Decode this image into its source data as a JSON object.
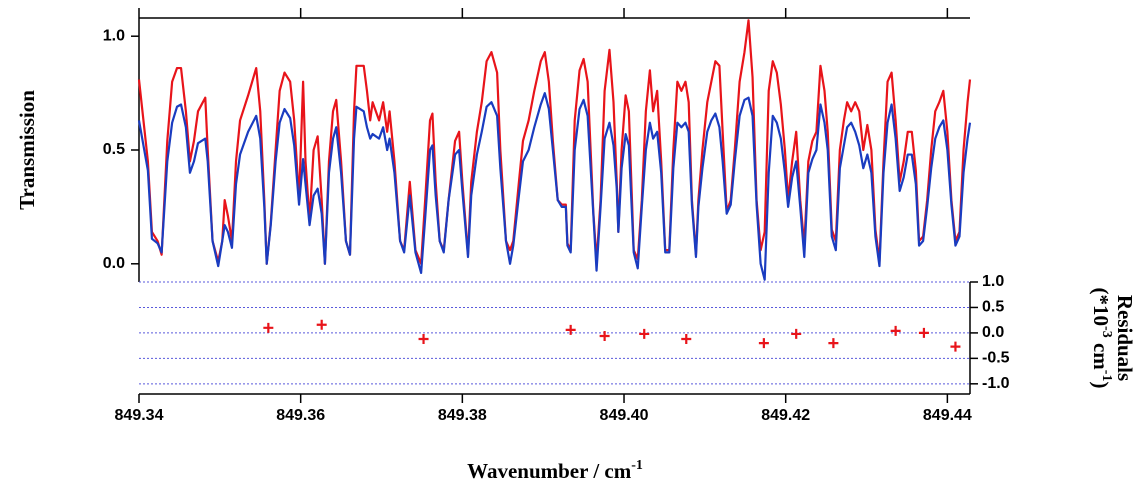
{
  "chart_data": [
    {
      "type": "line",
      "y_label": "Transmission",
      "x_label": "Wavenumber / cm",
      "x_label_sup": "-1",
      "xlim": [
        849.34,
        849.4428
      ],
      "xticks": [
        849.34,
        849.36,
        849.38,
        {
          "value": 849.4,
          "label": "849.40"
        },
        849.42,
        849.44
      ],
      "ylim": [
        -0.08,
        1.08
      ],
      "yticks": [
        {
          "value": 0,
          "label": "0.0"
        },
        {
          "value": 0.5,
          "label": "0.5"
        },
        {
          "value": 1,
          "label": "1.0"
        }
      ],
      "x": [
        849.34,
        849.3411,
        849.3416,
        849.3423,
        849.3428,
        849.3435,
        849.3441,
        849.3447,
        849.3452,
        849.3458,
        849.3463,
        849.3468,
        849.3473,
        849.3482,
        849.3485,
        849.3491,
        849.3498,
        849.3503,
        849.3506,
        849.351,
        849.3515,
        849.352,
        849.3525,
        849.3535,
        849.3545,
        849.355,
        849.3555,
        849.3558,
        849.3563,
        849.3569,
        849.3574,
        849.358,
        849.3587,
        849.3592,
        849.3598,
        849.3603,
        849.3606,
        849.3611,
        849.3616,
        849.3621,
        849.3626,
        849.363,
        849.3635,
        849.364,
        849.3644,
        849.365,
        849.3656,
        849.3661,
        849.3666,
        849.3669,
        849.3678,
        849.3682,
        849.3686,
        849.3689,
        849.3697,
        849.3702,
        849.3707,
        849.371,
        849.3716,
        849.3723,
        849.3728,
        849.3735,
        849.3742,
        849.3749,
        849.3754,
        849.376,
        849.3763,
        849.3767,
        849.3772,
        849.3777,
        849.3783,
        849.3791,
        849.3796,
        849.38,
        849.3807,
        849.3811,
        849.3818,
        849.3824,
        849.383,
        849.3836,
        849.3843,
        849.3847,
        849.3854,
        849.3859,
        849.3863,
        849.387,
        849.3875,
        849.3882,
        849.3889,
        849.3897,
        849.3902,
        849.3907,
        849.3912,
        849.3918,
        849.3923,
        849.3928,
        849.393,
        849.3934,
        849.3939,
        849.3945,
        849.395,
        849.3955,
        849.3962,
        849.3966,
        849.3971,
        849.3976,
        849.3982,
        849.3987,
        849.3991,
        849.3993,
        849.3997,
        849.4002,
        849.4006,
        849.4012,
        849.4017,
        849.4022,
        849.4027,
        849.4032,
        849.4036,
        849.4041,
        849.4046,
        849.4051,
        849.4056,
        849.4061,
        849.4066,
        849.4071,
        849.4076,
        849.408,
        849.4084,
        849.4089,
        849.4092,
        849.4097,
        849.4103,
        849.4108,
        849.4113,
        849.4118,
        849.4122,
        849.4127,
        849.4132,
        849.4137,
        849.4143,
        849.4149,
        849.4154,
        849.4159,
        849.4164,
        849.4169,
        849.4174,
        849.4179,
        849.4184,
        849.4189,
        849.4194,
        849.4199,
        849.4203,
        849.4208,
        849.4213,
        849.4218,
        849.4223,
        849.4228,
        849.4233,
        849.4238,
        849.4243,
        849.4248,
        849.4252,
        849.4257,
        849.4262,
        849.4267,
        849.4272,
        849.4276,
        849.4281,
        849.4286,
        849.4291,
        849.4296,
        849.4301,
        849.4306,
        849.4311,
        849.4316,
        849.4321,
        849.4326,
        849.4331,
        849.4336,
        849.4341,
        849.4346,
        849.4351,
        849.4356,
        849.4361,
        849.4365,
        849.437,
        849.4375,
        849.438,
        849.4385,
        849.439,
        849.4395,
        849.44,
        849.4405,
        849.441,
        849.4415,
        849.442,
        849.4425,
        849.4428
      ],
      "series": [
        {
          "color": "#e8141a",
          "values": [
            0.81,
            0.45,
            0.14,
            0.1,
            0.04,
            0.54,
            0.8,
            0.86,
            0.86,
            0.67,
            0.45,
            0.54,
            0.67,
            0.73,
            0.5,
            0.1,
            0.01,
            0.1,
            0.28,
            0.21,
            0.1,
            0.45,
            0.63,
            0.74,
            0.86,
            0.67,
            0.28,
            0,
            0.18,
            0.5,
            0.76,
            0.84,
            0.8,
            0.63,
            0.28,
            0.8,
            0.45,
            0.19,
            0.5,
            0.56,
            0.28,
            0,
            0.45,
            0.67,
            0.72,
            0.45,
            0.1,
            0.04,
            0.67,
            0.87,
            0.87,
            0.76,
            0.63,
            0.71,
            0.63,
            0.71,
            0.58,
            0.67,
            0.45,
            0.1,
            0.06,
            0.36,
            0.06,
            0,
            0.28,
            0.63,
            0.66,
            0.36,
            0.1,
            0.06,
            0.28,
            0.54,
            0.58,
            0.36,
            0.04,
            0.36,
            0.58,
            0.71,
            0.89,
            0.93,
            0.84,
            0.5,
            0.1,
            0.06,
            0.1,
            0.36,
            0.54,
            0.63,
            0.76,
            0.89,
            0.93,
            0.8,
            0.54,
            0.28,
            0.26,
            0.26,
            0.09,
            0.06,
            0.63,
            0.85,
            0.9,
            0.8,
            0.23,
            0.01,
            0.28,
            0.76,
            0.94,
            0.71,
            0.36,
            0.14,
            0.5,
            0.74,
            0.67,
            0.06,
            0.02,
            0.28,
            0.67,
            0.85,
            0.67,
            0.76,
            0.45,
            0.06,
            0.06,
            0.5,
            0.8,
            0.76,
            0.8,
            0.71,
            0.28,
            0.04,
            0.28,
            0.5,
            0.71,
            0.8,
            0.89,
            0.87,
            0.58,
            0.23,
            0.28,
            0.5,
            0.8,
            0.93,
            1.07,
            0.82,
            0.28,
            0.06,
            0.14,
            0.76,
            0.89,
            0.84,
            0.7,
            0.5,
            0.28,
            0.45,
            0.58,
            0.28,
            0.08,
            0.45,
            0.54,
            0.58,
            0.87,
            0.76,
            0.58,
            0.15,
            0.1,
            0.5,
            0.63,
            0.71,
            0.67,
            0.71,
            0.67,
            0.5,
            0.61,
            0.5,
            0.15,
            0.01,
            0.45,
            0.8,
            0.84,
            0.63,
            0.36,
            0.45,
            0.58,
            0.58,
            0.41,
            0.1,
            0.12,
            0.28,
            0.5,
            0.67,
            0.71,
            0.76,
            0.58,
            0.28,
            0.1,
            0.14,
            0.5,
            0.71,
            0.81
          ]
        },
        {
          "color": "#1a3cc0",
          "values": [
            0.63,
            0.41,
            0.11,
            0.09,
            0.05,
            0.45,
            0.62,
            0.69,
            0.7,
            0.6,
            0.4,
            0.45,
            0.53,
            0.55,
            0.45,
            0.1,
            -0.01,
            0.1,
            0.17,
            0.14,
            0.07,
            0.35,
            0.48,
            0.58,
            0.65,
            0.55,
            0.25,
            0,
            0.17,
            0.45,
            0.62,
            0.68,
            0.64,
            0.52,
            0.26,
            0.46,
            0.35,
            0.17,
            0.3,
            0.33,
            0.22,
            0,
            0.4,
            0.55,
            0.6,
            0.4,
            0.1,
            0.04,
            0.55,
            0.69,
            0.67,
            0.6,
            0.55,
            0.57,
            0.55,
            0.6,
            0.5,
            0.55,
            0.4,
            0.1,
            0.05,
            0.3,
            0.05,
            -0.04,
            0.2,
            0.5,
            0.52,
            0.3,
            0.1,
            0.05,
            0.28,
            0.48,
            0.5,
            0.32,
            0.03,
            0.3,
            0.48,
            0.58,
            0.69,
            0.71,
            0.65,
            0.42,
            0.1,
            0,
            0.08,
            0.3,
            0.45,
            0.5,
            0.6,
            0.7,
            0.75,
            0.68,
            0.5,
            0.28,
            0.25,
            0.25,
            0.08,
            0.05,
            0.5,
            0.68,
            0.72,
            0.65,
            0.22,
            -0.03,
            0.25,
            0.55,
            0.62,
            0.52,
            0.33,
            0.14,
            0.42,
            0.57,
            0.52,
            0.05,
            -0.02,
            0.25,
            0.5,
            0.62,
            0.55,
            0.58,
            0.4,
            0.05,
            0.05,
            0.42,
            0.62,
            0.6,
            0.62,
            0.58,
            0.26,
            0.03,
            0.25,
            0.42,
            0.58,
            0.63,
            0.66,
            0.6,
            0.45,
            0.22,
            0.26,
            0.45,
            0.65,
            0.72,
            0.73,
            0.65,
            0.26,
            0,
            -0.07,
            0.4,
            0.65,
            0.62,
            0.55,
            0.4,
            0.25,
            0.38,
            0.45,
            0.25,
            0.03,
            0.4,
            0.46,
            0.5,
            0.7,
            0.62,
            0.5,
            0.12,
            0.06,
            0.42,
            0.52,
            0.6,
            0.62,
            0.58,
            0.52,
            0.42,
            0.48,
            0.4,
            0.12,
            -0.01,
            0.4,
            0.62,
            0.7,
            0.55,
            0.32,
            0.38,
            0.48,
            0.48,
            0.35,
            0.08,
            0.1,
            0.25,
            0.42,
            0.55,
            0.6,
            0.63,
            0.5,
            0.26,
            0.08,
            0.12,
            0.4,
            0.55,
            0.62
          ]
        }
      ]
    },
    {
      "type": "scatter",
      "y_label": "Residuals",
      "y_unit": [
        "(*10",
        "-3",
        " cm",
        "-1",
        ")"
      ],
      "xlim": [
        849.34,
        849.4428
      ],
      "ylim": [
        -1.2,
        1.0
      ],
      "yticks": [
        {
          "value": 1,
          "label": "1.0"
        },
        {
          "value": 0.5,
          "label": "0.5"
        },
        {
          "value": 0,
          "label": "0.0"
        },
        {
          "value": -0.5,
          "label": "-0.5"
        },
        {
          "value": -1,
          "label": "-1.0"
        }
      ],
      "grid": true,
      "color": "#e8141a",
      "grid_color": "#5a5adc",
      "x": [
        849.356,
        849.3626,
        849.3752,
        849.3934,
        849.3976,
        849.4025,
        849.4077,
        849.4173,
        849.4213,
        849.4259,
        849.4336,
        849.4371,
        849.441
      ],
      "values": [
        0.1,
        0.16,
        -0.12,
        0.06,
        -0.06,
        -0.02,
        -0.12,
        -0.2,
        -0.02,
        -0.2,
        0.04,
        0,
        -0.27
      ]
    }
  ]
}
